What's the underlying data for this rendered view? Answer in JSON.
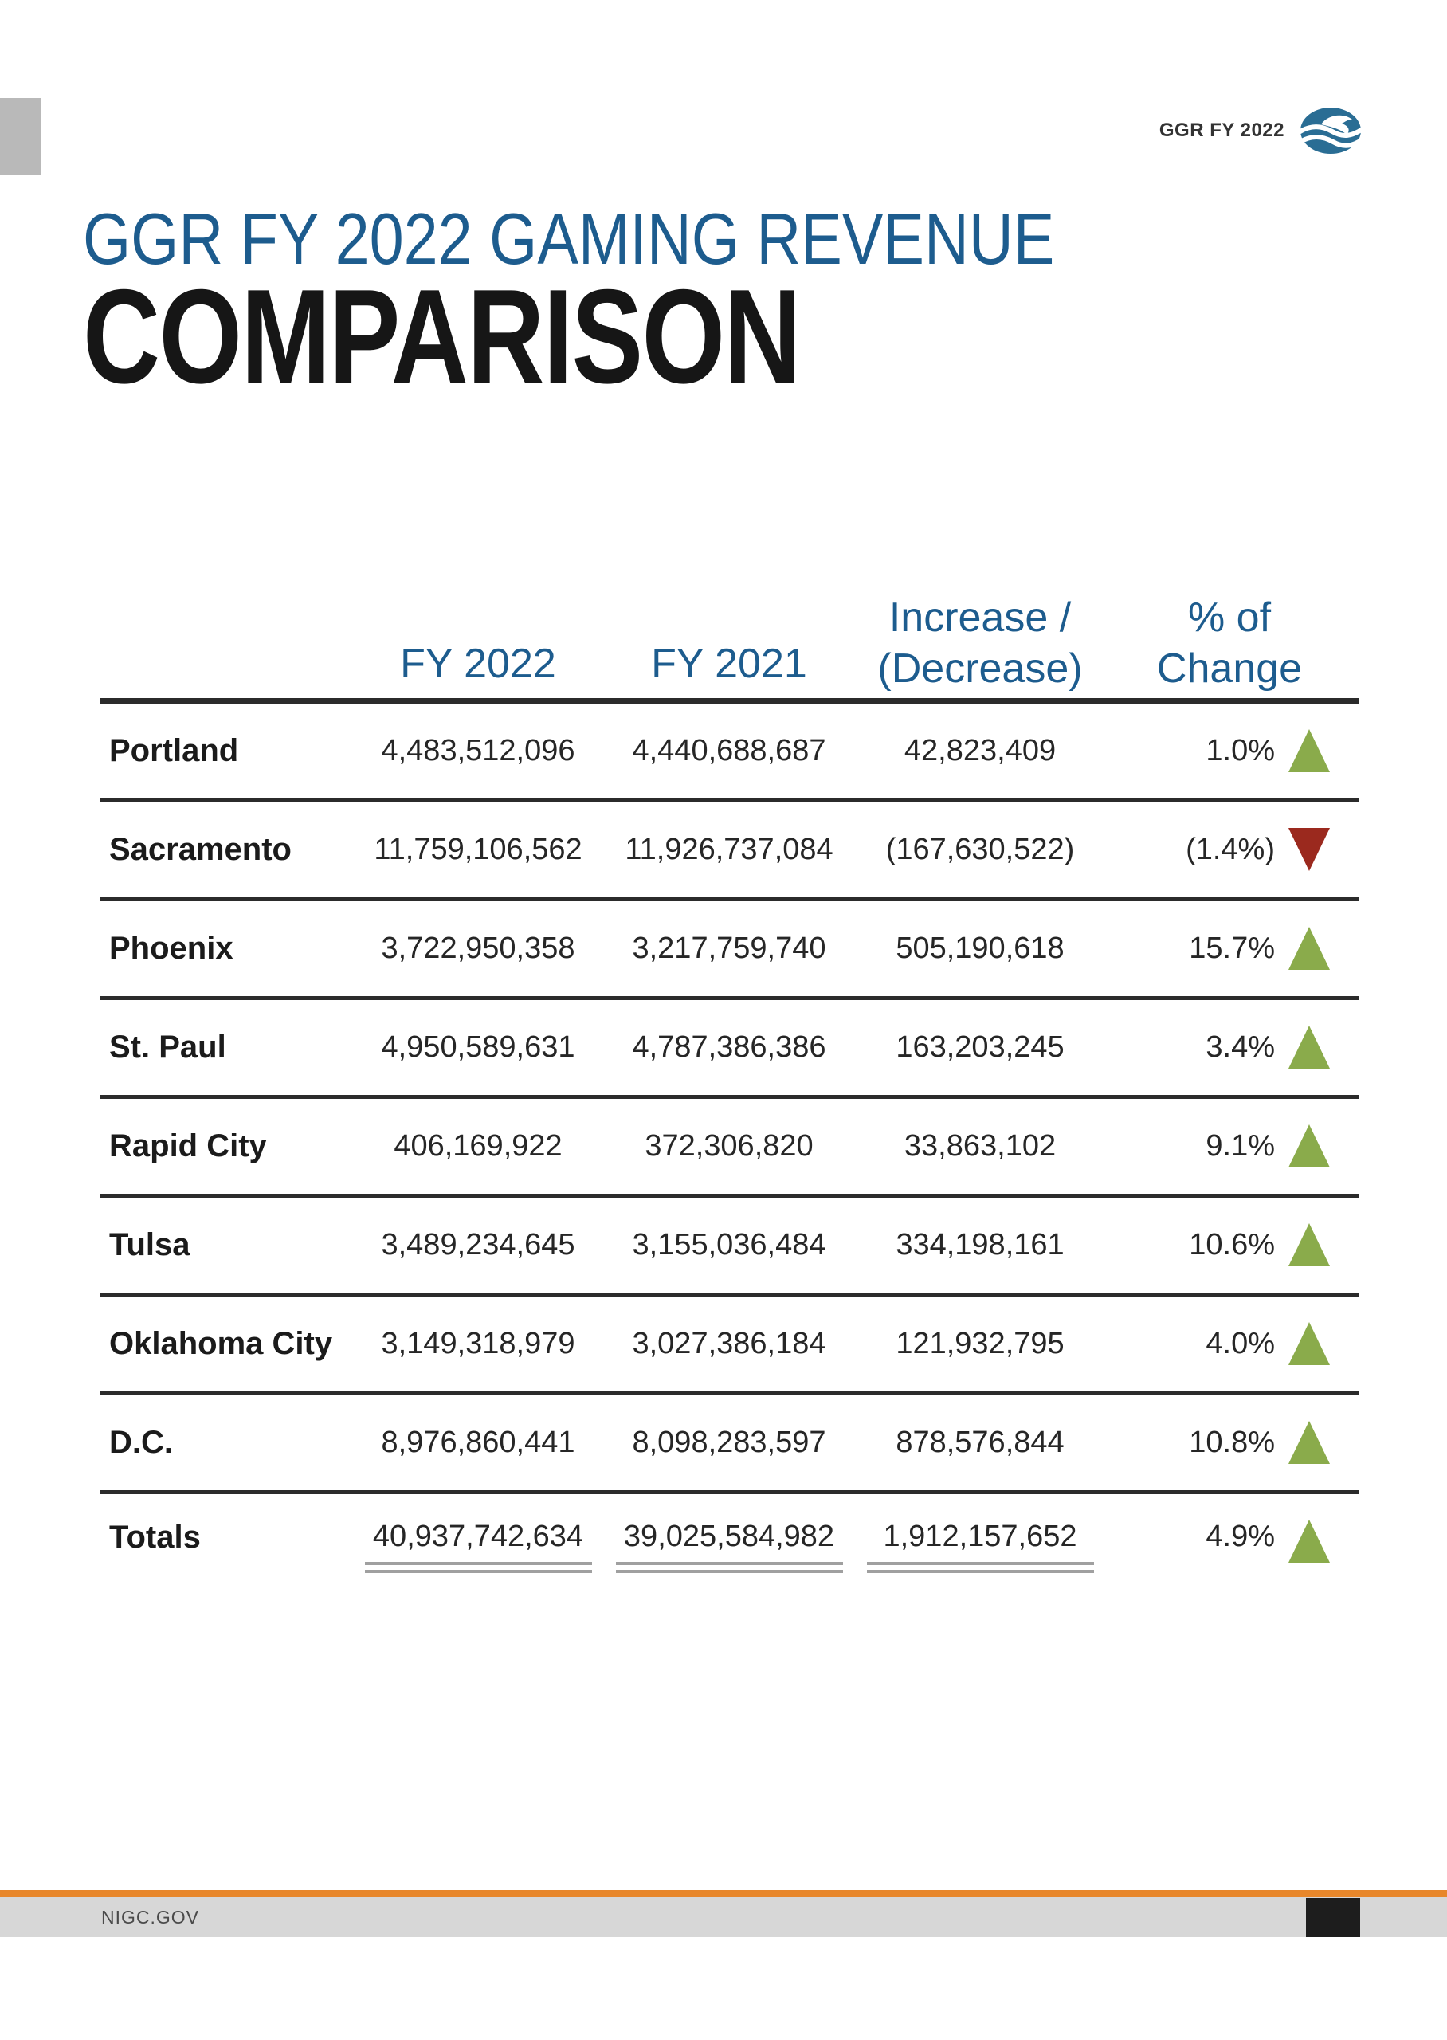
{
  "page": {
    "header_badge_label": "GGR FY 2022",
    "title_line1": "GGR FY 2022 GAMING REVENUE",
    "title_line2": "COMPARISON",
    "footer_site": "NIGC.GOV"
  },
  "colors": {
    "accent_blue": "#1d5c8e",
    "increase_green": "#8aab4b",
    "decrease_red": "#9b291e",
    "divider_dark": "#2b2b2b",
    "totals_rule_gray": "#a0a0a0",
    "footer_orange": "#e8872b",
    "footer_gray": "#d7d7d7",
    "side_block_gray": "#b9b9b9",
    "logo_blue": "#2a6d94"
  },
  "table": {
    "header": {
      "fy2022": "FY 2022",
      "fy2021": "FY 2021",
      "increase_line1": "Increase /",
      "increase_line2": "(Decrease)",
      "pct_line1": "% of",
      "pct_line2": "Change"
    },
    "rows": [
      {
        "label": "Portland",
        "fy2022": "4,483,512,096",
        "fy2021": "4,440,688,687",
        "change": "42,823,409",
        "pct": "1.0%",
        "direction": "up",
        "totals": false
      },
      {
        "label": "Sacramento",
        "fy2022": "11,759,106,562",
        "fy2021": "11,926,737,084",
        "change": "(167,630,522)",
        "pct": "(1.4%)",
        "direction": "down",
        "totals": false
      },
      {
        "label": "Phoenix",
        "fy2022": "3,722,950,358",
        "fy2021": "3,217,759,740",
        "change": "505,190,618",
        "pct": "15.7%",
        "direction": "up",
        "totals": false
      },
      {
        "label": "St. Paul",
        "fy2022": "4,950,589,631",
        "fy2021": "4,787,386,386",
        "change": "163,203,245",
        "pct": "3.4%",
        "direction": "up",
        "totals": false
      },
      {
        "label": "Rapid City",
        "fy2022": "406,169,922",
        "fy2021": "372,306,820",
        "change": "33,863,102",
        "pct": "9.1%",
        "direction": "up",
        "totals": false
      },
      {
        "label": "Tulsa",
        "fy2022": "3,489,234,645",
        "fy2021": "3,155,036,484",
        "change": "334,198,161",
        "pct": "10.6%",
        "direction": "up",
        "totals": false
      },
      {
        "label": "Oklahoma City",
        "fy2022": "3,149,318,979",
        "fy2021": "3,027,386,184",
        "change": "121,932,795",
        "pct": "4.0%",
        "direction": "up",
        "totals": false
      },
      {
        "label": "D.C.",
        "fy2022": "8,976,860,441",
        "fy2021": "8,098,283,597",
        "change": "878,576,844",
        "pct": "10.8%",
        "direction": "up",
        "totals": false
      },
      {
        "label": "Totals",
        "fy2022": "40,937,742,634",
        "fy2021": "39,025,584,982",
        "change": "1,912,157,652",
        "pct": "4.9%",
        "direction": "up",
        "totals": true
      }
    ]
  }
}
